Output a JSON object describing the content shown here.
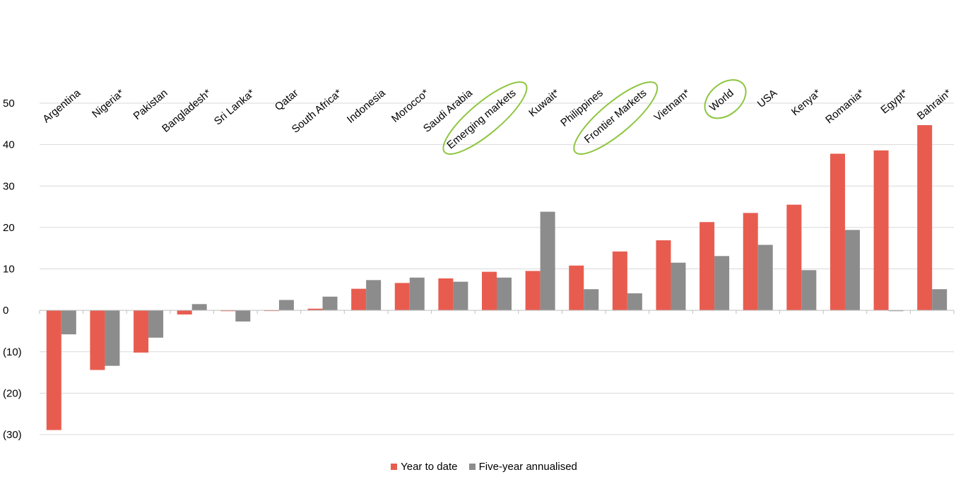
{
  "chart_data": {
    "type": "bar",
    "title": "",
    "xlabel": "",
    "ylabel": "",
    "categories": [
      "Argentina",
      "Nigeria*",
      "Pakistan",
      "Bangladesh*",
      "Sri Lanka*",
      "Qatar",
      "South Africa*",
      "Indonesia",
      "Morocco*",
      "Saudi Arabia",
      "Emerging markets",
      "Kuwait*",
      "Philippines",
      "Frontier Markets",
      "Vietnam*",
      "World",
      "USA",
      "Kenya*",
      "Romania*",
      "Egypt*",
      "Bahrain*"
    ],
    "highlighted_categories": [
      "Emerging markets",
      "Frontier Markets",
      "World"
    ],
    "highlight_color": "#8DC63F",
    "ylim": [
      -30,
      50
    ],
    "yticks": [
      50,
      40,
      30,
      20,
      10,
      0,
      -10,
      -20,
      -30
    ],
    "ytick_labels": [
      "50",
      "40",
      "30",
      "20",
      "10",
      "0",
      "(10)",
      "(20)",
      "(30)"
    ],
    "grid": true,
    "legend_position": "bottom-center",
    "series": [
      {
        "name": "Year to date",
        "color": "#E85C4F",
        "values": [
          -28.9,
          -14.4,
          -10.2,
          -1.0,
          -0.2,
          0.0,
          0.4,
          5.2,
          6.6,
          7.7,
          9.3,
          9.5,
          10.8,
          14.2,
          16.9,
          21.3,
          23.5,
          25.5,
          37.8,
          38.6,
          44.7
        ]
      },
      {
        "name": "Five-year annualised",
        "color": "#8C8C8C",
        "values": [
          -5.8,
          -13.4,
          -6.6,
          1.5,
          -2.7,
          2.5,
          3.3,
          7.3,
          7.9,
          6.9,
          7.9,
          23.8,
          5.1,
          4.1,
          11.5,
          13.1,
          15.8,
          9.7,
          19.4,
          -0.2,
          5.1
        ]
      }
    ]
  }
}
